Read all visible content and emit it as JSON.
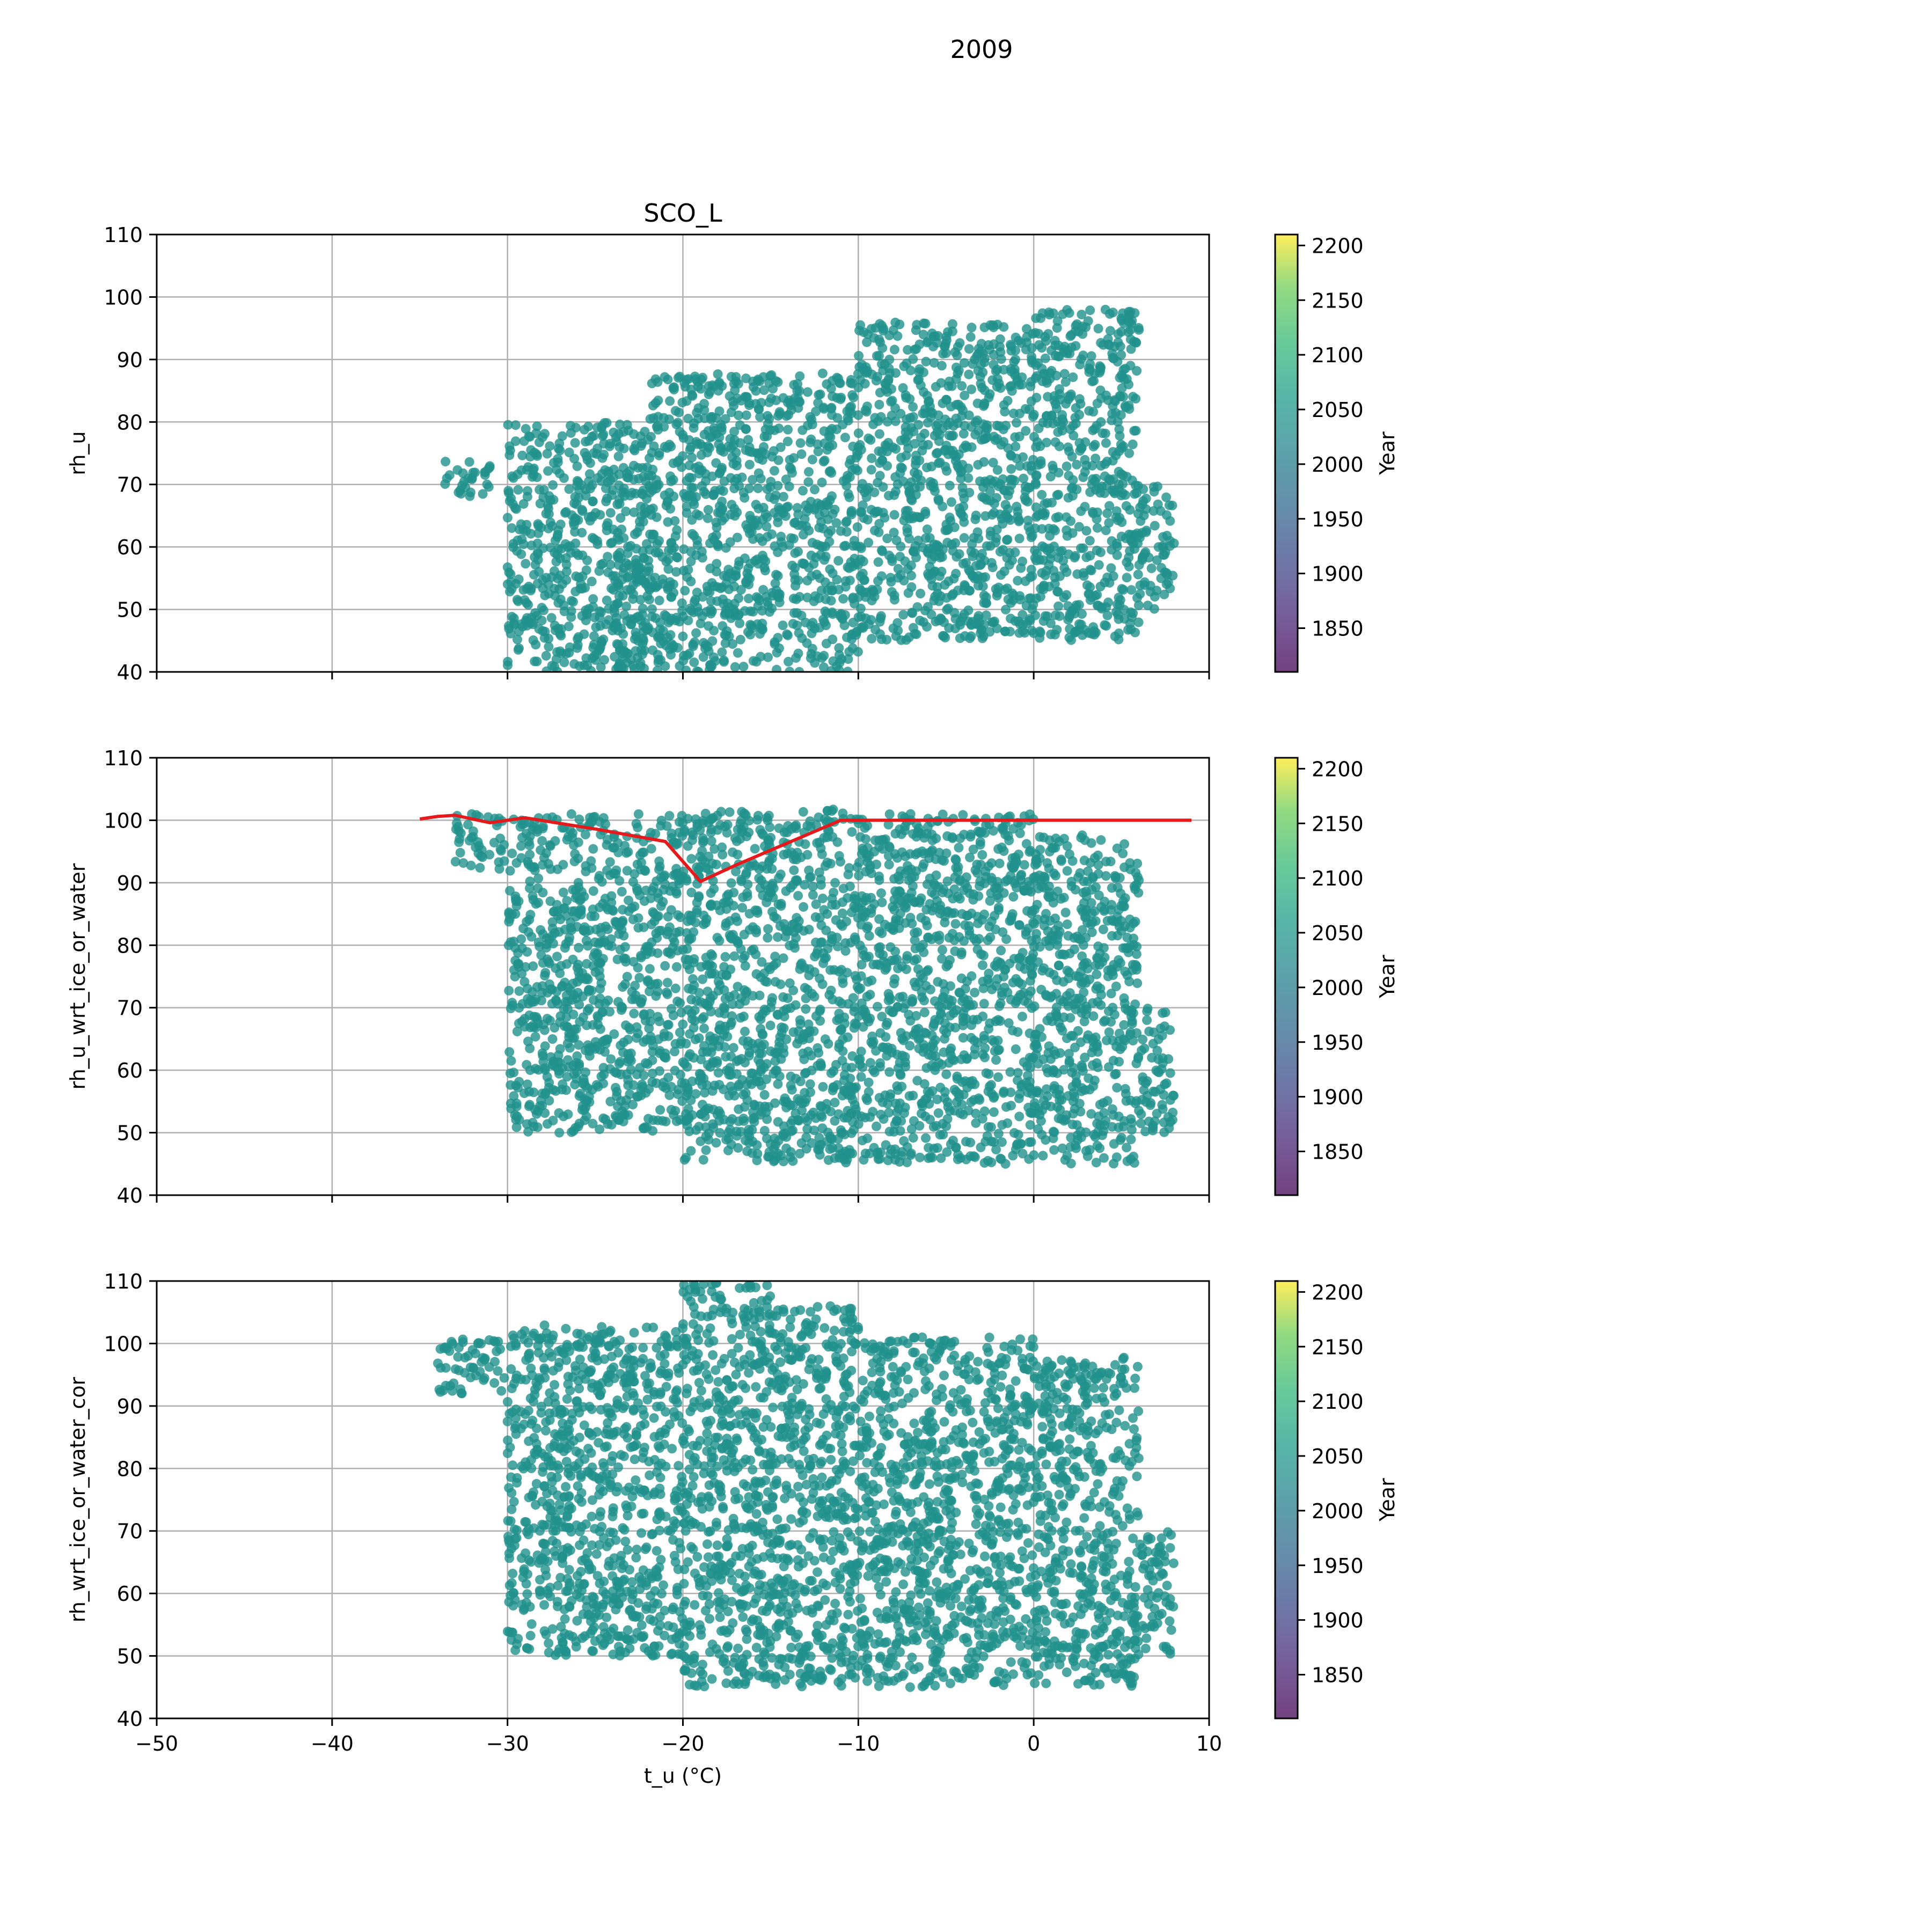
{
  "figure": {
    "suptitle": "2009"
  },
  "colors": {
    "points": "#21918c",
    "line": "#e41a1c",
    "grid": "#b0b0b0"
  },
  "chart_data": [
    {
      "type": "scatter",
      "title": "SCO_L",
      "xlabel": "",
      "ylabel": "rh_u",
      "xlim": [
        -50,
        10
      ],
      "ylim": [
        40,
        110
      ],
      "xticks": [
        -50,
        -40,
        -30,
        -20,
        -10,
        0,
        10
      ],
      "yticks": [
        40,
        50,
        60,
        70,
        80,
        90,
        100,
        110
      ],
      "show_xtick_labels": false,
      "grid": true,
      "points_x_range": [
        -34,
        8
      ],
      "clusters": [
        {
          "x": [
            -34,
            -31
          ],
          "y": [
            68,
            74
          ]
        },
        {
          "x": [
            -30,
            -22
          ],
          "y": [
            40,
            80
          ]
        },
        {
          "x": [
            -24,
            -10
          ],
          "y": [
            40,
            60
          ]
        },
        {
          "x": [
            -22,
            -10
          ],
          "y": [
            60,
            88
          ]
        },
        {
          "x": [
            -10,
            0
          ],
          "y": [
            45,
            96
          ]
        },
        {
          "x": [
            0,
            6
          ],
          "y": [
            45,
            98
          ]
        },
        {
          "x": [
            6,
            8
          ],
          "y": [
            50,
            70
          ]
        }
      ],
      "colorbar": {
        "label": "Year",
        "range": [
          1810,
          2210
        ],
        "ticks": [
          1850,
          1900,
          1950,
          2000,
          2050,
          2100,
          2150,
          2200
        ]
      }
    },
    {
      "type": "scatter",
      "title": "",
      "xlabel": "",
      "ylabel": "rh_u_wrt_ice_or_water",
      "xlim": [
        -50,
        10
      ],
      "ylim": [
        40,
        110
      ],
      "xticks": [
        -50,
        -40,
        -30,
        -20,
        -10,
        0,
        10
      ],
      "yticks": [
        40,
        50,
        60,
        70,
        80,
        90,
        100,
        110
      ],
      "show_xtick_labels": false,
      "grid": true,
      "points_x_range": [
        -34,
        8
      ],
      "clusters": [
        {
          "x": [
            -33,
            -30
          ],
          "y": [
            92,
            101
          ]
        },
        {
          "x": [
            -30,
            -20
          ],
          "y": [
            50,
            101
          ]
        },
        {
          "x": [
            -20,
            -10
          ],
          "y": [
            45,
            102
          ]
        },
        {
          "x": [
            -10,
            0
          ],
          "y": [
            45,
            101
          ]
        },
        {
          "x": [
            0,
            6
          ],
          "y": [
            45,
            98
          ]
        },
        {
          "x": [
            6,
            8
          ],
          "y": [
            50,
            70
          ]
        }
      ],
      "line": {
        "x": [
          -35,
          -34,
          -33,
          -31,
          -29,
          -27,
          -25,
          -23,
          -21,
          -19,
          -17,
          -15,
          -13,
          -11,
          -9,
          -7,
          -5,
          -3,
          -1,
          1,
          3,
          5,
          7,
          9
        ],
        "y": [
          100.2,
          100.6,
          100.8,
          99.6,
          100.4,
          99.5,
          98.6,
          97.6,
          96.6,
          90.2,
          92.8,
          95.2,
          97.6,
          100.0,
          100.0,
          100.0,
          100.0,
          100.0,
          100.0,
          100.0,
          100.0,
          100.0,
          100.0,
          100.0
        ]
      },
      "colorbar": {
        "label": "Year",
        "range": [
          1810,
          2210
        ],
        "ticks": [
          1850,
          1900,
          1950,
          2000,
          2050,
          2100,
          2150,
          2200
        ]
      }
    },
    {
      "type": "scatter",
      "title": "",
      "xlabel": "t_u (°C)",
      "ylabel": "rh_wrt_ice_or_water_cor",
      "xlim": [
        -50,
        10
      ],
      "ylim": [
        40,
        110
      ],
      "xticks": [
        -50,
        -40,
        -30,
        -20,
        -10,
        0,
        10
      ],
      "yticks": [
        40,
        50,
        60,
        70,
        80,
        90,
        100,
        110
      ],
      "xtick_labels": [
        "−50",
        "−40",
        "−30",
        "−20",
        "−10",
        "0",
        "10"
      ],
      "show_xtick_labels": true,
      "grid": true,
      "points_x_range": [
        -34,
        8
      ],
      "clusters": [
        {
          "x": [
            -34,
            -30
          ],
          "y": [
            92,
            101
          ]
        },
        {
          "x": [
            -30,
            -20
          ],
          "y": [
            50,
            103
          ]
        },
        {
          "x": [
            -20,
            -15
          ],
          "y": [
            45,
            110
          ]
        },
        {
          "x": [
            -15,
            -10
          ],
          "y": [
            45,
            106
          ]
        },
        {
          "x": [
            -10,
            0
          ],
          "y": [
            45,
            101
          ]
        },
        {
          "x": [
            0,
            6
          ],
          "y": [
            45,
            98
          ]
        },
        {
          "x": [
            6,
            8
          ],
          "y": [
            50,
            70
          ]
        }
      ],
      "colorbar": {
        "label": "Year",
        "range": [
          1810,
          2210
        ],
        "ticks": [
          1850,
          1900,
          1950,
          2000,
          2050,
          2100,
          2150,
          2200
        ]
      }
    }
  ]
}
